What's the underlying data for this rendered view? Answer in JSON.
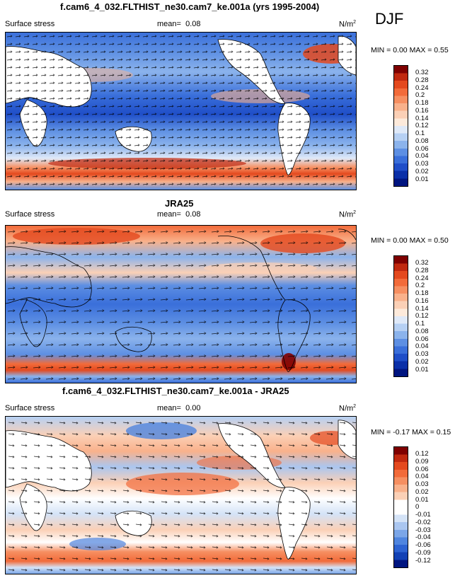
{
  "season_label": "DJF",
  "panels": [
    {
      "title": "f.cam6_4_032.FLTHIST_ne30.cam7_ke.001a (yrs 1995-2004)",
      "variable": "Surface stress",
      "mean_label": "mean=",
      "mean_value": "0.08",
      "units": "N/m",
      "units_sup": "2",
      "min_max": "MIN =  0.00 MAX =  0.55",
      "colorbar_ticks": [
        "0.32",
        "0.28",
        "0.24",
        "0.2",
        "0.18",
        "0.16",
        "0.14",
        "0.12",
        "0.1",
        "0.08",
        "0.06",
        "0.04",
        "0.03",
        "0.02",
        "0.01"
      ]
    },
    {
      "title": "JRA25",
      "variable": "Surface stress",
      "mean_label": "mean=",
      "mean_value": "0.08",
      "units": "N/m",
      "units_sup": "2",
      "min_max": "MIN =  0.00 MAX =  0.50",
      "colorbar_ticks": [
        "0.32",
        "0.28",
        "0.24",
        "0.2",
        "0.18",
        "0.16",
        "0.14",
        "0.12",
        "0.1",
        "0.08",
        "0.06",
        "0.04",
        "0.03",
        "0.02",
        "0.01"
      ]
    },
    {
      "title": "f.cam6_4_032.FLTHIST_ne30.cam7_ke.001a - JRA25",
      "variable": "Surface stress",
      "mean_label": "mean=",
      "mean_value": "0.00",
      "units": "N/m",
      "units_sup": "2",
      "min_max": "MIN = -0.17 MAX =  0.15",
      "colorbar_ticks": [
        "0.12",
        "0.09",
        "0.06",
        "0.04",
        "0.03",
        "0.02",
        "0.01",
        "0",
        "-0.01",
        "-0.02",
        "-0.03",
        "-0.04",
        "-0.06",
        "-0.09",
        "-0.12"
      ]
    }
  ],
  "colorbar_colors": [
    "#7f0000",
    "#c0280f",
    "#e4491e",
    "#f26b3a",
    "#f68f61",
    "#f9b18b",
    "#fbd0b6",
    "#fdeadb",
    "#dfe9f8",
    "#b6d0f3",
    "#8bb3ec",
    "#5d8fe3",
    "#3a6fda",
    "#1f4ec8",
    "#0a2fa8",
    "#001580"
  ],
  "diff_colorbar_colors": [
    "#7f0000",
    "#c0280f",
    "#e4491e",
    "#f26b3a",
    "#f68f61",
    "#f9b18b",
    "#fbd0b6",
    "#ffffff",
    "#ffffff",
    "#d4e3f7",
    "#aac6f0",
    "#7ba6e8",
    "#4f85df",
    "#2d63d2",
    "#1241b5",
    "#001580"
  ]
}
